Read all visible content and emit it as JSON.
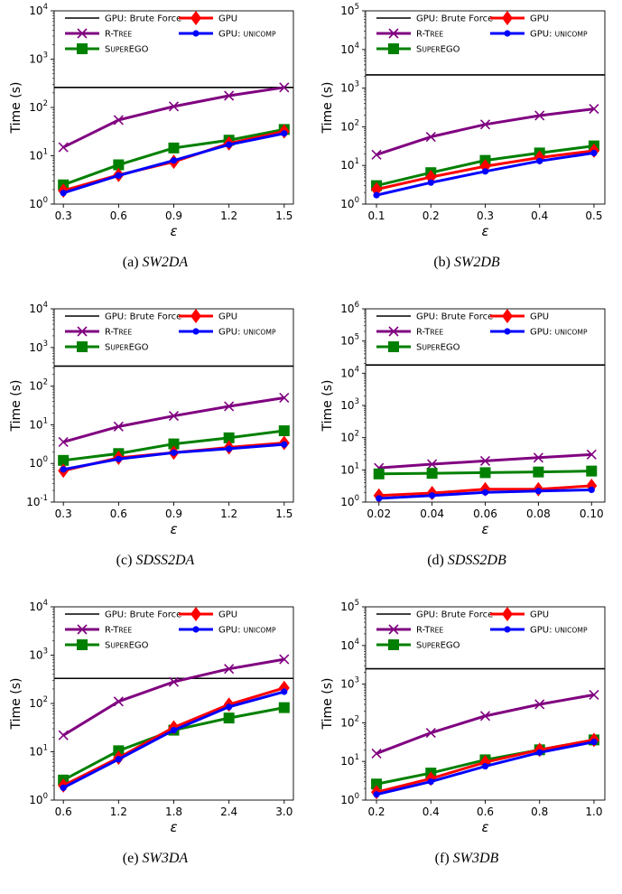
{
  "legend_labels": {
    "brute": "GPU: Brute Force",
    "rtree": "R-Tree",
    "superego": "SuperEGO",
    "gpu": "GPU",
    "unicomp": "GPU: unicomp"
  },
  "colors": {
    "brute": "#000000",
    "rtree": "#800080",
    "superego": "#008000",
    "gpu": "#ff0000",
    "unicomp": "#0000ff"
  },
  "chart_data": [
    {
      "type": "line",
      "caption_letter": "(a)",
      "caption_name": "SW2DA",
      "xlabel": "ε",
      "ylabel": "Time (s)",
      "yscale": "log",
      "x": [
        0.3,
        0.6,
        0.9,
        1.2,
        1.5
      ],
      "xticks": [
        "0.3",
        "0.6",
        "0.9",
        "1.2",
        "1.5"
      ],
      "xlim": [
        0.25,
        1.55
      ],
      "ylim_exp": [
        0,
        4
      ],
      "brute_force": 260,
      "series": [
        {
          "key": "rtree",
          "name": "R-Tree",
          "values": [
            15,
            55,
            105,
            175,
            260
          ]
        },
        {
          "key": "superego",
          "name": "SuperEGO",
          "values": [
            2.5,
            6.5,
            14.5,
            21,
            35
          ]
        },
        {
          "key": "gpu",
          "name": "GPU",
          "values": [
            1.9,
            4,
            7.5,
            18,
            32
          ]
        },
        {
          "key": "unicomp",
          "name": "GPU: unicomp",
          "values": [
            1.7,
            3.9,
            8,
            17,
            29
          ]
        }
      ]
    },
    {
      "type": "line",
      "caption_letter": "(b)",
      "caption_name": "SW2DB",
      "xlabel": "ε",
      "ylabel": "Time (s)",
      "yscale": "log",
      "x": [
        0.1,
        0.2,
        0.3,
        0.4,
        0.5
      ],
      "xticks": [
        "0.1",
        "0.2",
        "0.3",
        "0.4",
        "0.5"
      ],
      "xlim": [
        0.08,
        0.52
      ],
      "ylim_exp": [
        0,
        5
      ],
      "brute_force": 2200,
      "series": [
        {
          "key": "rtree",
          "name": "R-Tree",
          "values": [
            19,
            55,
            115,
            195,
            290
          ]
        },
        {
          "key": "superego",
          "name": "SuperEGO",
          "values": [
            3,
            6.5,
            13.5,
            21,
            32
          ]
        },
        {
          "key": "gpu",
          "name": "GPU",
          "values": [
            2.4,
            5,
            9.5,
            16,
            24
          ]
        },
        {
          "key": "unicomp",
          "name": "GPU: unicomp",
          "values": [
            1.7,
            3.6,
            7,
            13,
            21
          ]
        }
      ]
    },
    {
      "type": "line",
      "caption_letter": "(c)",
      "caption_name": "SDSS2DA",
      "xlabel": "ε",
      "ylabel": "Time (s)",
      "yscale": "log",
      "x": [
        0.3,
        0.6,
        0.9,
        1.2,
        1.5
      ],
      "xticks": [
        "0.3",
        "0.6",
        "0.9",
        "1.2",
        "1.5"
      ],
      "xlim": [
        0.25,
        1.55
      ],
      "ylim_exp": [
        -1,
        4
      ],
      "brute_force": 330,
      "series": [
        {
          "key": "rtree",
          "name": "R-Tree",
          "values": [
            3.6,
            9,
            17,
            30,
            50
          ]
        },
        {
          "key": "superego",
          "name": "SuperEGO",
          "values": [
            1.2,
            1.8,
            3.2,
            4.6,
            7
          ]
        },
        {
          "key": "gpu",
          "name": "GPU",
          "values": [
            0.65,
            1.4,
            1.9,
            2.6,
            3.4
          ]
        },
        {
          "key": "unicomp",
          "name": "GPU: unicomp",
          "values": [
            0.7,
            1.3,
            1.9,
            2.4,
            3.1
          ]
        }
      ]
    },
    {
      "type": "line",
      "caption_letter": "(d)",
      "caption_name": "SDSS2DB",
      "xlabel": "ε",
      "ylabel": "Time (s)",
      "yscale": "log",
      "x": [
        0.02,
        0.04,
        0.06,
        0.08,
        0.1
      ],
      "xticks": [
        "0.02",
        "0.04",
        "0.06",
        "0.08",
        "0.10"
      ],
      "xlim": [
        0.015,
        0.105
      ],
      "ylim_exp": [
        0,
        6
      ],
      "brute_force": 18000,
      "series": [
        {
          "key": "rtree",
          "name": "R-Tree",
          "values": [
            11.5,
            15,
            19,
            24,
            30
          ]
        },
        {
          "key": "superego",
          "name": "SuperEGO",
          "values": [
            7.5,
            7.8,
            8.2,
            8.6,
            9.2
          ]
        },
        {
          "key": "gpu",
          "name": "GPU",
          "values": [
            1.6,
            1.9,
            2.5,
            2.5,
            3.2
          ]
        },
        {
          "key": "unicomp",
          "name": "GPU: unicomp",
          "values": [
            1.3,
            1.6,
            2,
            2.2,
            2.4
          ]
        }
      ]
    },
    {
      "type": "line",
      "caption_letter": "(e)",
      "caption_name": "SW3DA",
      "xlabel": "ε",
      "ylabel": "Time (s)",
      "yscale": "log",
      "x": [
        0.6,
        1.2,
        1.8,
        2.4,
        3.0
      ],
      "xticks": [
        "0.6",
        "1.2",
        "1.8",
        "2.4",
        "3.0"
      ],
      "xlim": [
        0.5,
        3.1
      ],
      "ylim_exp": [
        0,
        4
      ],
      "brute_force": 330,
      "series": [
        {
          "key": "rtree",
          "name": "R-Tree",
          "values": [
            22,
            110,
            280,
            520,
            820
          ]
        },
        {
          "key": "superego",
          "name": "SuperEGO",
          "values": [
            2.6,
            10.5,
            28,
            50,
            82
          ]
        },
        {
          "key": "gpu",
          "name": "GPU",
          "values": [
            2,
            7.5,
            32,
            95,
            210
          ]
        },
        {
          "key": "unicomp",
          "name": "GPU: unicomp",
          "values": [
            1.8,
            7,
            28,
            85,
            175
          ]
        }
      ]
    },
    {
      "type": "line",
      "caption_letter": "(f)",
      "caption_name": "SW3DB",
      "xlabel": "ε",
      "ylabel": "Time (s)",
      "yscale": "log",
      "x": [
        0.2,
        0.4,
        0.6,
        0.8,
        1.0
      ],
      "xticks": [
        "0.2",
        "0.4",
        "0.6",
        "0.8",
        "1.0"
      ],
      "xlim": [
        0.16,
        1.04
      ],
      "ylim_exp": [
        0,
        5
      ],
      "brute_force": 2500,
      "series": [
        {
          "key": "rtree",
          "name": "R-Tree",
          "values": [
            16,
            55,
            150,
            300,
            530
          ]
        },
        {
          "key": "superego",
          "name": "SuperEGO",
          "values": [
            2.6,
            5,
            11,
            20,
            36
          ]
        },
        {
          "key": "gpu",
          "name": "GPU",
          "values": [
            1.6,
            3.6,
            9.5,
            20,
            36
          ]
        },
        {
          "key": "unicomp",
          "name": "GPU: unicomp",
          "values": [
            1.4,
            3,
            7.5,
            17,
            32
          ]
        }
      ]
    }
  ]
}
